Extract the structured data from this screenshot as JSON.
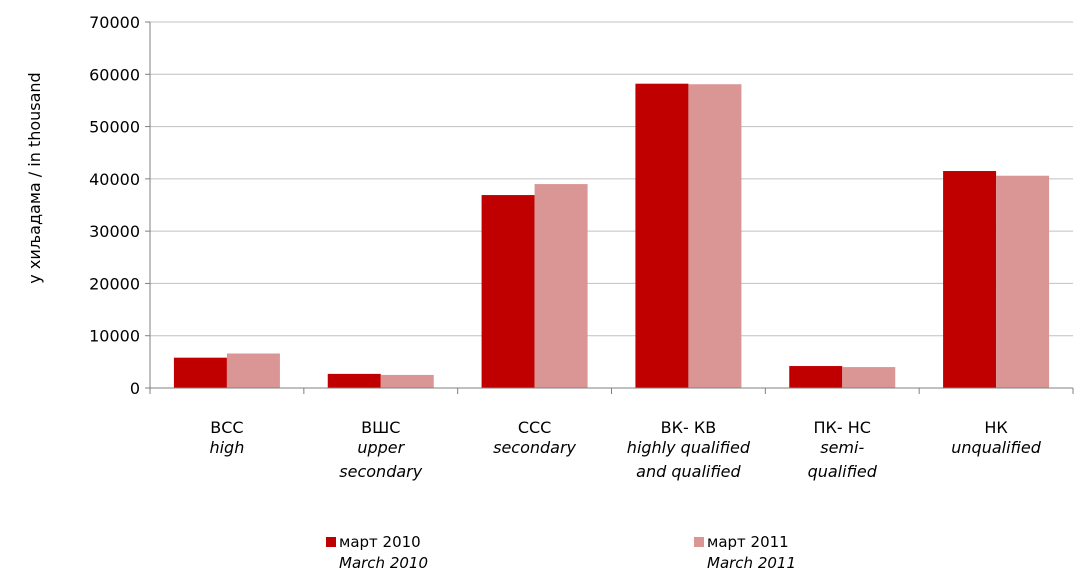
{
  "chart_data": {
    "type": "bar",
    "ylabel": "у хиљадама / in thousand",
    "ylim": [
      0,
      70000
    ],
    "yticks": [
      0,
      10000,
      20000,
      30000,
      40000,
      50000,
      60000,
      70000
    ],
    "grid": true,
    "legend_position": "bottom",
    "categories": [
      {
        "line1": "ВСС",
        "line2": "high",
        "line3": ""
      },
      {
        "line1": "ВШС",
        "line2": "upper",
        "line3": "secondary"
      },
      {
        "line1": "ССС",
        "line2": "secondary",
        "line3": ""
      },
      {
        "line1": "ВК- КВ",
        "line2": "highly qualified",
        "line3": "and qualified"
      },
      {
        "line1": "ПК- НС",
        "line2": "semi-",
        "line3": "qualified"
      },
      {
        "line1": "НК",
        "line2": "unqualified",
        "line3": ""
      }
    ],
    "series": [
      {
        "name": "март 2010",
        "name_en": "March 2010",
        "color": "#c00000",
        "values": [
          5800,
          2700,
          36900,
          58200,
          4200,
          41500
        ]
      },
      {
        "name": "март 2011",
        "name_en": "March 2011",
        "color": "#d99694",
        "values": [
          6600,
          2500,
          39000,
          58100,
          4000,
          40600
        ]
      }
    ]
  }
}
